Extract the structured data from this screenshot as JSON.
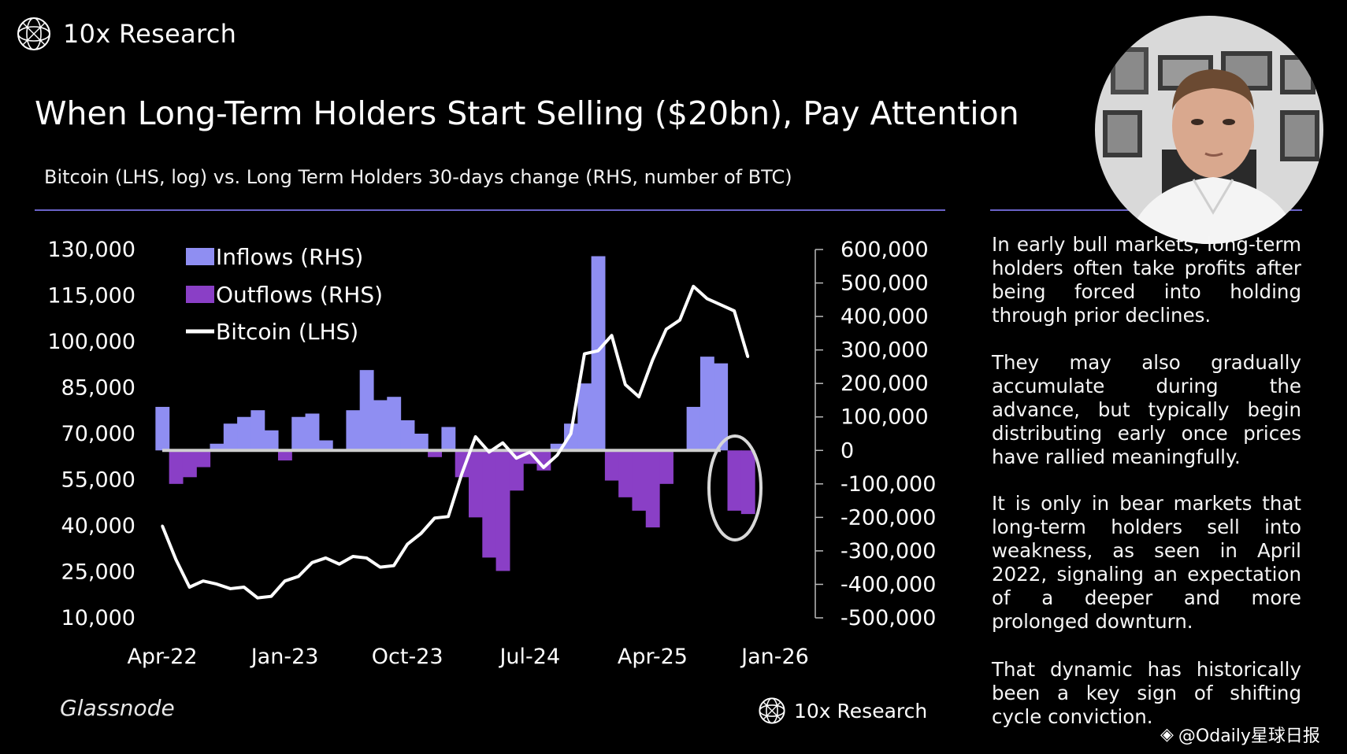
{
  "brand": {
    "name": "10x Research",
    "logo_icon": "globe-mesh-icon"
  },
  "title": "When Long-Term Holders Start Selling ($20bn), Pay Attention",
  "subtitle": "Bitcoin (LHS, log) vs. Long Term Holders 30-days change (RHS, number of BTC)",
  "source": "Glassnode",
  "footer_brand": "10x Research",
  "watermark": "@Odaily星球日报",
  "body": {
    "paragraphs": [
      "In early bull markets, long-term holders often take profits after being forced into holding through prior declines.",
      "They may also gradually accumulate during the advance, but typically begin distributing early once prices have rallied meaningfully.",
      "It is only in bear markets that long-term holders sell into weakness, as seen in April 2022, signaling an expectation of a deeper and more prolonged downturn.",
      "That dynamic has historically been a key sign of shifting cycle conviction."
    ]
  },
  "colors": {
    "inflows": "#8f8ef2",
    "outflows": "#8a3fc6",
    "bitcoin": "#ffffff",
    "rule": "#6a63c8",
    "background": "#000000"
  },
  "chart_data": {
    "type": "area",
    "left_axis": {
      "label": "Bitcoin (LHS)",
      "ticks": [
        "130,000",
        "115,000",
        "100,000",
        "85,000",
        "70,000",
        "55,000",
        "40,000",
        "25,000",
        "10,000"
      ],
      "range": [
        10000,
        130000
      ]
    },
    "right_axis": {
      "label": "number of BTC (RHS)",
      "ticks": [
        "600,000",
        "500,000",
        "400,000",
        "300,000",
        "200,000",
        "100,000",
        "0",
        "-100,000",
        "-200,000",
        "-300,000",
        "-400,000",
        "-500,000"
      ],
      "range": [
        -500000,
        600000
      ]
    },
    "x_ticks": [
      "Apr-22",
      "Jan-23",
      "Oct-23",
      "Jul-24",
      "Apr-25",
      "Jan-26"
    ],
    "legend": [
      {
        "name": "Inflows (RHS)",
        "kind": "area",
        "color": "#8f8ef2"
      },
      {
        "name": "Outflows (RHS)",
        "kind": "area",
        "color": "#8a3fc6"
      },
      {
        "name": "Bitcoin (LHS)",
        "kind": "line",
        "color": "#ffffff"
      }
    ],
    "annotation": "circle highlighting latest outflows",
    "series": [
      {
        "name": "Long Term Holders 30-days change (RHS)",
        "x": [
          "2022-04",
          "2022-05",
          "2022-06",
          "2022-07",
          "2022-08",
          "2022-09",
          "2022-10",
          "2022-11",
          "2022-12",
          "2023-01",
          "2023-02",
          "2023-03",
          "2023-04",
          "2023-05",
          "2023-06",
          "2023-07",
          "2023-08",
          "2023-09",
          "2023-10",
          "2023-11",
          "2023-12",
          "2024-01",
          "2024-02",
          "2024-03",
          "2024-04",
          "2024-05",
          "2024-06",
          "2024-07",
          "2024-08",
          "2024-09",
          "2024-10",
          "2024-11",
          "2024-12",
          "2025-01",
          "2025-02",
          "2025-03",
          "2025-04",
          "2025-05",
          "2025-06",
          "2025-07",
          "2025-08",
          "2025-09",
          "2025-10",
          "2025-11"
        ],
        "values": [
          130000,
          -100000,
          -80000,
          -50000,
          20000,
          80000,
          100000,
          120000,
          60000,
          -30000,
          100000,
          110000,
          30000,
          0,
          120000,
          240000,
          150000,
          160000,
          90000,
          50000,
          -20000,
          70000,
          -80000,
          -200000,
          -320000,
          -360000,
          -120000,
          -40000,
          -60000,
          20000,
          80000,
          200000,
          580000,
          -90000,
          -140000,
          -180000,
          -230000,
          -100000,
          0,
          130000,
          280000,
          260000,
          -180000,
          -190000
        ]
      },
      {
        "name": "Bitcoin (LHS)",
        "x": [
          "2022-04",
          "2022-05",
          "2022-06",
          "2022-07",
          "2022-08",
          "2022-09",
          "2022-10",
          "2022-11",
          "2022-12",
          "2023-01",
          "2023-02",
          "2023-03",
          "2023-04",
          "2023-05",
          "2023-06",
          "2023-07",
          "2023-08",
          "2023-09",
          "2023-10",
          "2023-11",
          "2023-12",
          "2024-01",
          "2024-02",
          "2024-03",
          "2024-04",
          "2024-05",
          "2024-06",
          "2024-07",
          "2024-08",
          "2024-09",
          "2024-10",
          "2024-11",
          "2024-12",
          "2025-01",
          "2025-02",
          "2025-03",
          "2025-04",
          "2025-05",
          "2025-06",
          "2025-07",
          "2025-08",
          "2025-09",
          "2025-10",
          "2025-11"
        ],
        "values": [
          40000,
          29000,
          20000,
          22000,
          21000,
          19500,
          20000,
          16500,
          17000,
          22000,
          23500,
          28000,
          29500,
          27500,
          30000,
          29500,
          26500,
          27000,
          34000,
          37500,
          42500,
          43000,
          57000,
          69000,
          64000,
          67000,
          62000,
          64000,
          59000,
          63000,
          70000,
          96000,
          97000,
          102000,
          86000,
          82000,
          94000,
          104000,
          107000,
          118000,
          114000,
          112000,
          110000,
          95000
        ]
      }
    ]
  }
}
